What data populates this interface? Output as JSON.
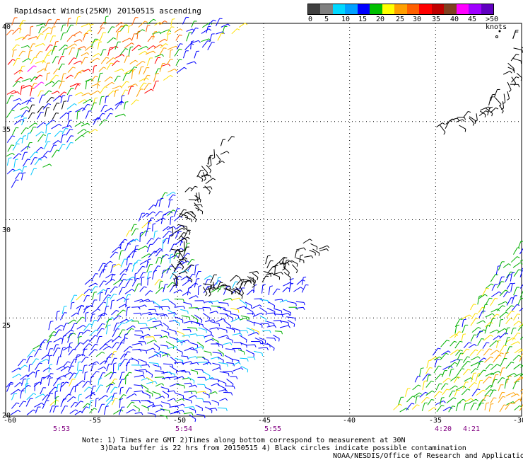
{
  "title": "Rapidsact Winds(25KM) 20150515 ascending",
  "legend": {
    "unit": ">50 knots",
    "labels": [
      "0",
      "5",
      "10",
      "15",
      "20",
      "25",
      "30",
      "35",
      "40",
      "45"
    ],
    "colors": [
      "#404040",
      "#808080",
      "#00d8ff",
      "#00a0ff",
      "#0000ff",
      "#00c000",
      "#ffff00",
      "#ffa000",
      "#ff6000",
      "#ff0000",
      "#c00000",
      "#804020",
      "#ff00ff",
      "#a000ff",
      "#6000c0"
    ]
  },
  "lat_labels": [
    "40",
    "35",
    "30",
    "25",
    "20"
  ],
  "lon_labels": [
    "-60",
    "-55",
    "-50",
    "-45",
    "-40",
    "-35",
    "-30"
  ],
  "times": [
    "5:53",
    "5:54",
    "5:55",
    "4:20",
    "4:21"
  ],
  "notes": [
    "Note: 1) Times are GMT 2)Times along bottom correspond to measurement at 30N",
    "3)Data buffer is 22 hrs from 20150515 4) Black circles indicate possible contamination",
    "NOAA/NESDIS/Office of Research and Applications"
  ],
  "map_data": {
    "lon_range": [
      -60,
      -30
    ],
    "lat_range": [
      20,
      40
    ],
    "grid_lons": [
      -55,
      -50,
      -45,
      -40,
      -35
    ],
    "grid_lats": [
      35,
      30,
      25
    ]
  }
}
